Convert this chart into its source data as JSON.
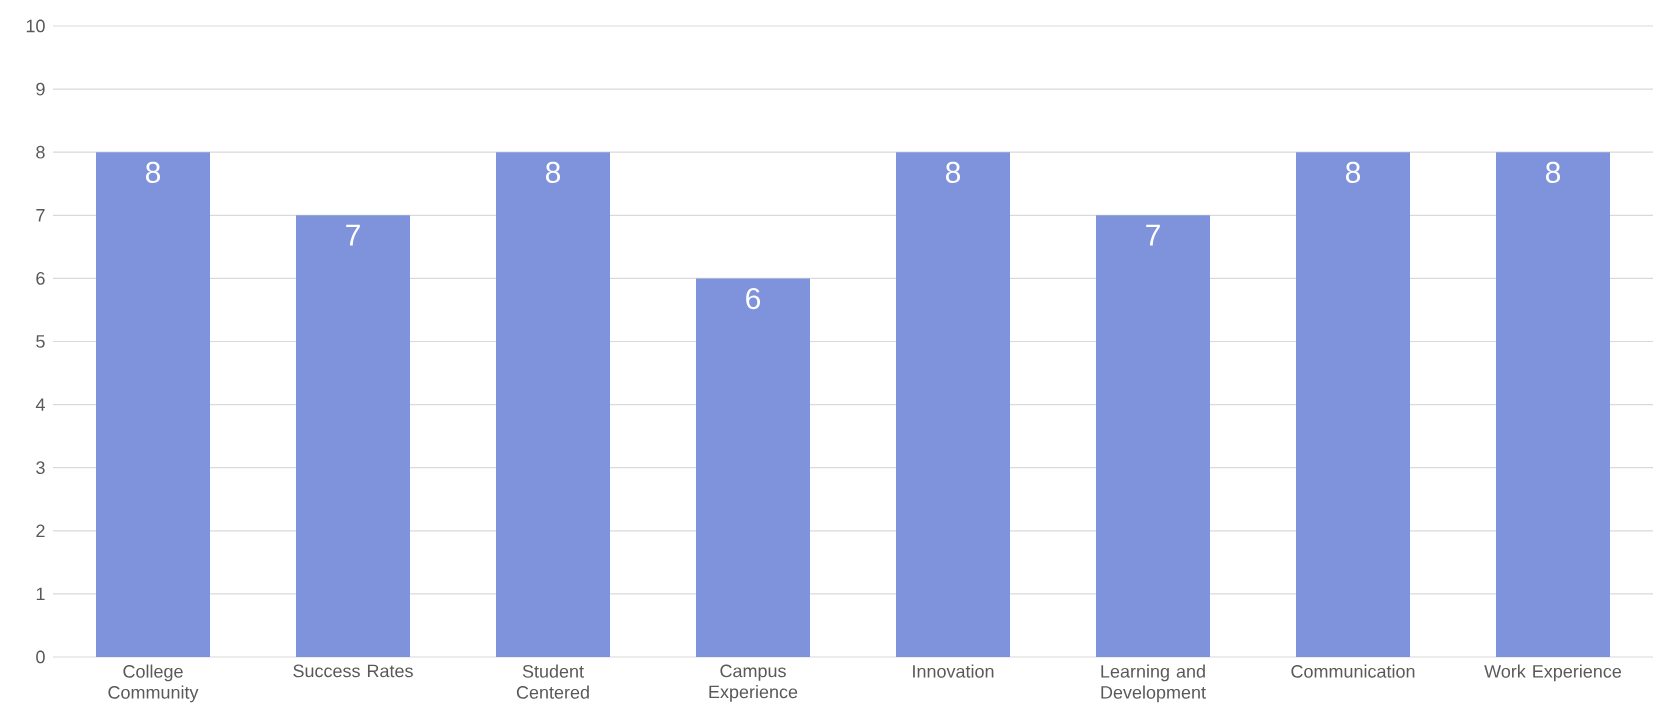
{
  "chart_data": {
    "type": "bar",
    "categories": [
      "College Community",
      "Success Rates",
      "Student Centered",
      "Campus Experience",
      "Innovation",
      "Learning and Development",
      "Communication",
      "Work Experience"
    ],
    "values": [
      8,
      7,
      8,
      6,
      8,
      7,
      8,
      8
    ],
    "color": "#7f93dc",
    "ylim": [
      0,
      10
    ],
    "yticks": [
      0,
      1,
      2,
      3,
      4,
      5,
      6,
      7,
      8,
      9,
      10
    ],
    "grid": "y",
    "data_labels": true
  }
}
